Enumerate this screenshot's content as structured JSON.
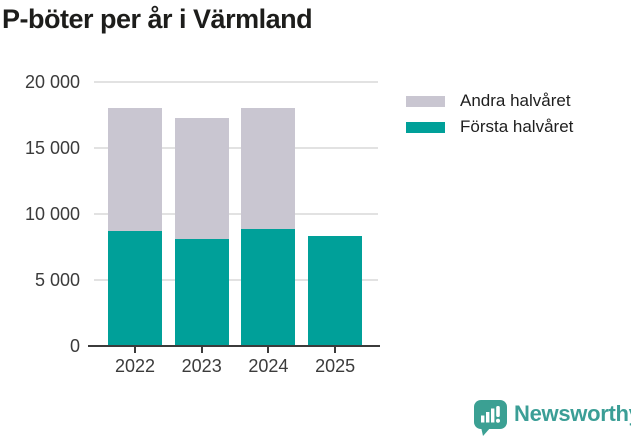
{
  "title": "P-böter per år i Värmland",
  "chart_data": {
    "type": "bar",
    "stacked": true,
    "title": "P-böter per år i Värmland",
    "categories": [
      "2022",
      "2023",
      "2024",
      "2025"
    ],
    "series": [
      {
        "name": "Första halvåret",
        "color": "#00a099",
        "values": [
          8700,
          8100,
          8900,
          8300
        ]
      },
      {
        "name": "Andra halvåret",
        "color": "#c9c6d1",
        "values": [
          9350,
          9200,
          9150,
          null
        ]
      }
    ],
    "totals": [
      18050,
      17300,
      18050,
      8300
    ],
    "xlabel": "",
    "ylabel": "",
    "ylim": [
      0,
      20000
    ],
    "ytick_interval": 5000,
    "ytick_values": [
      0,
      5000,
      10000,
      15000,
      20000
    ],
    "ytick_labels": [
      "0",
      "5 000",
      "10 000",
      "15 000",
      "20 000"
    ],
    "grid": true,
    "legend_position": "right"
  },
  "legend": {
    "items": [
      {
        "label": "Andra halvåret",
        "color": "#c9c6d1"
      },
      {
        "label": "Första halvåret",
        "color": "#00a099"
      }
    ]
  },
  "branding": {
    "logo_text": "Newsworthy",
    "logo_color": "#3ba093",
    "logo_icon": "speech-bubble-bar-chart-icon"
  },
  "colors": {
    "first_half": "#00a099",
    "second_half": "#c9c6d1",
    "axis": "#3b3b3b",
    "gridline": "#e2e2e2",
    "title_text": "#1d1d1b",
    "tick_text": "#3b3b3b",
    "background": "#ffffff"
  }
}
